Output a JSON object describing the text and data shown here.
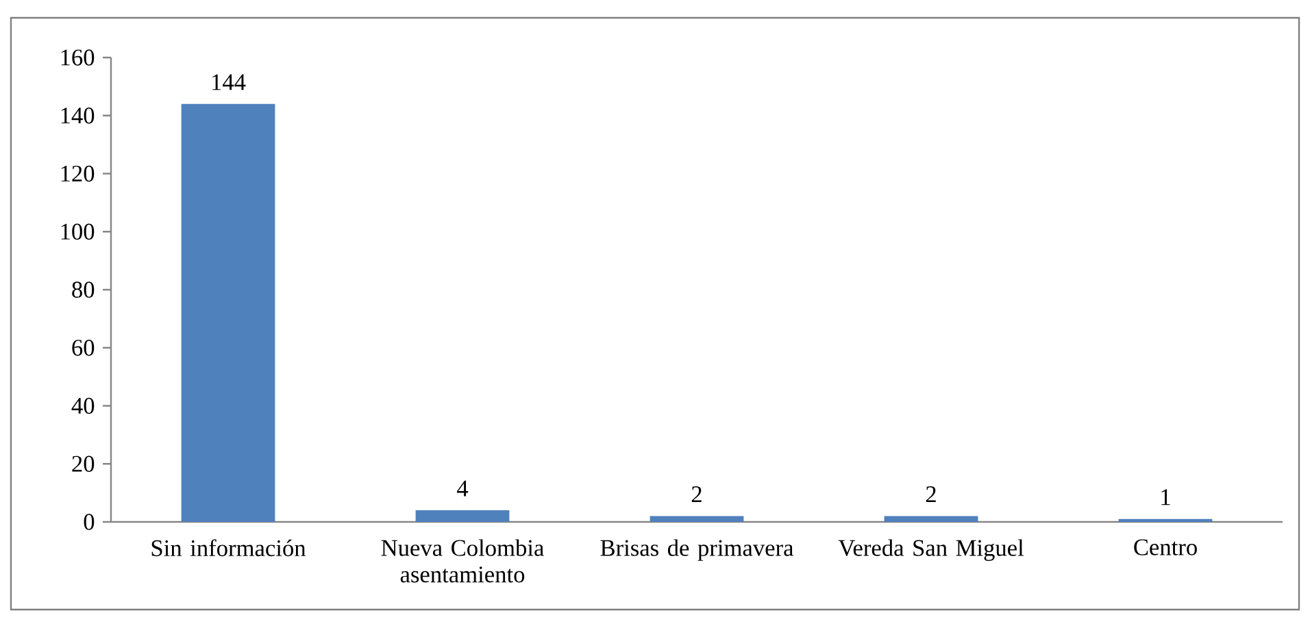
{
  "chart_data": {
    "type": "bar",
    "categories": [
      "Sin información",
      "Nueva Colombia asentamiento",
      "Brisas de primavera",
      "Vereda San Miguel",
      "Centro"
    ],
    "values": [
      144,
      4,
      2,
      2,
      1
    ],
    "color": "#4f81bd",
    "ylim": [
      0,
      160
    ],
    "yticks": [
      0,
      20,
      40,
      60,
      80,
      100,
      120,
      140,
      160
    ],
    "data_labels": true
  }
}
